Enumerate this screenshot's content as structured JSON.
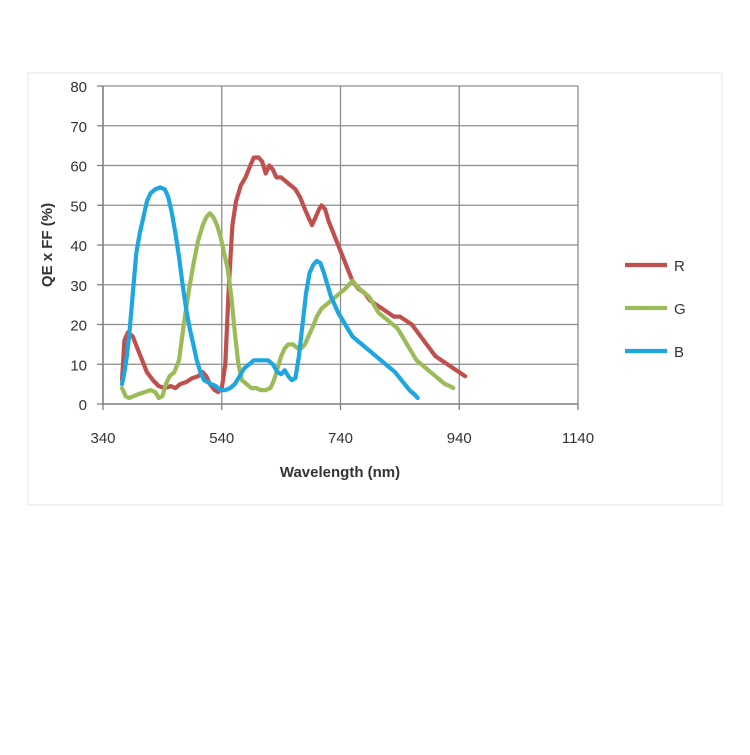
{
  "chart_data": {
    "type": "line",
    "title": "",
    "xlabel": "Wavelength (nm)",
    "ylabel": "QE x FF (%)",
    "xlim": [
      340,
      1140
    ],
    "ylim": [
      0,
      80
    ],
    "xticks": [
      340,
      540,
      740,
      940,
      1140
    ],
    "yticks": [
      0,
      10,
      20,
      30,
      40,
      50,
      60,
      70,
      80
    ],
    "grid": true,
    "legend": "right",
    "series": [
      {
        "name": "R",
        "color": "#c0504d",
        "points": [
          [
            372,
            6
          ],
          [
            376,
            16
          ],
          [
            382,
            18
          ],
          [
            390,
            17
          ],
          [
            398,
            14
          ],
          [
            406,
            11
          ],
          [
            414,
            8
          ],
          [
            424,
            6
          ],
          [
            434,
            4.5
          ],
          [
            444,
            4
          ],
          [
            454,
            4.5
          ],
          [
            462,
            4
          ],
          [
            470,
            5
          ],
          [
            480,
            5.5
          ],
          [
            490,
            6.5
          ],
          [
            500,
            7
          ],
          [
            508,
            8
          ],
          [
            514,
            7
          ],
          [
            520,
            5
          ],
          [
            528,
            3.5
          ],
          [
            534,
            3
          ],
          [
            540,
            4
          ],
          [
            546,
            10
          ],
          [
            552,
            30
          ],
          [
            558,
            45
          ],
          [
            564,
            51
          ],
          [
            572,
            55
          ],
          [
            580,
            57
          ],
          [
            588,
            60
          ],
          [
            594,
            62
          ],
          [
            602,
            62
          ],
          [
            608,
            61
          ],
          [
            614,
            58
          ],
          [
            620,
            60
          ],
          [
            626,
            59
          ],
          [
            632,
            57
          ],
          [
            640,
            57
          ],
          [
            648,
            56
          ],
          [
            656,
            55
          ],
          [
            664,
            54
          ],
          [
            672,
            52
          ],
          [
            680,
            49
          ],
          [
            686,
            47
          ],
          [
            692,
            45
          ],
          [
            698,
            47
          ],
          [
            704,
            49
          ],
          [
            708,
            50
          ],
          [
            714,
            49
          ],
          [
            720,
            46
          ],
          [
            728,
            43
          ],
          [
            736,
            40
          ],
          [
            744,
            37
          ],
          [
            752,
            34
          ],
          [
            760,
            31
          ],
          [
            770,
            29
          ],
          [
            780,
            28
          ],
          [
            790,
            26
          ],
          [
            800,
            25
          ],
          [
            810,
            24
          ],
          [
            820,
            23
          ],
          [
            830,
            22
          ],
          [
            840,
            22
          ],
          [
            850,
            21
          ],
          [
            860,
            20
          ],
          [
            870,
            18
          ],
          [
            880,
            16
          ],
          [
            890,
            14
          ],
          [
            900,
            12
          ],
          [
            910,
            11
          ],
          [
            920,
            10
          ],
          [
            930,
            9
          ],
          [
            940,
            8
          ],
          [
            950,
            7
          ]
        ]
      },
      {
        "name": "G",
        "color": "#9bbb59",
        "points": [
          [
            372,
            4
          ],
          [
            378,
            2
          ],
          [
            384,
            1.5
          ],
          [
            392,
            2
          ],
          [
            400,
            2.5
          ],
          [
            410,
            3
          ],
          [
            420,
            3.5
          ],
          [
            428,
            3
          ],
          [
            434,
            1.5
          ],
          [
            440,
            2
          ],
          [
            446,
            5
          ],
          [
            452,
            7
          ],
          [
            460,
            8
          ],
          [
            468,
            11
          ],
          [
            476,
            20
          ],
          [
            484,
            28
          ],
          [
            492,
            35
          ],
          [
            500,
            41
          ],
          [
            508,
            45
          ],
          [
            514,
            47
          ],
          [
            520,
            48
          ],
          [
            526,
            47
          ],
          [
            532,
            45
          ],
          [
            538,
            42
          ],
          [
            544,
            38
          ],
          [
            550,
            34
          ],
          [
            556,
            27
          ],
          [
            562,
            18
          ],
          [
            568,
            10
          ],
          [
            574,
            6
          ],
          [
            582,
            5
          ],
          [
            590,
            4
          ],
          [
            598,
            4
          ],
          [
            606,
            3.5
          ],
          [
            614,
            3.5
          ],
          [
            622,
            4
          ],
          [
            628,
            6
          ],
          [
            634,
            9
          ],
          [
            640,
            12
          ],
          [
            646,
            14
          ],
          [
            652,
            15
          ],
          [
            660,
            15
          ],
          [
            668,
            14
          ],
          [
            674,
            14
          ],
          [
            680,
            15
          ],
          [
            686,
            17
          ],
          [
            692,
            19
          ],
          [
            700,
            22
          ],
          [
            708,
            24
          ],
          [
            716,
            25
          ],
          [
            724,
            26
          ],
          [
            732,
            27
          ],
          [
            740,
            28
          ],
          [
            748,
            29
          ],
          [
            754,
            30
          ],
          [
            760,
            31
          ],
          [
            766,
            30
          ],
          [
            772,
            29
          ],
          [
            780,
            28
          ],
          [
            788,
            27
          ],
          [
            796,
            25
          ],
          [
            804,
            23
          ],
          [
            812,
            22
          ],
          [
            820,
            21
          ],
          [
            828,
            20
          ],
          [
            836,
            19
          ],
          [
            844,
            17
          ],
          [
            852,
            15
          ],
          [
            860,
            13
          ],
          [
            868,
            11
          ],
          [
            876,
            10
          ],
          [
            884,
            9
          ],
          [
            892,
            8
          ],
          [
            900,
            7
          ],
          [
            908,
            6
          ],
          [
            916,
            5
          ],
          [
            924,
            4.5
          ],
          [
            930,
            4
          ]
        ]
      },
      {
        "name": "B",
        "color": "#1ea6e0",
        "points": [
          [
            372,
            5
          ],
          [
            376,
            8
          ],
          [
            380,
            12
          ],
          [
            384,
            17
          ],
          [
            388,
            24
          ],
          [
            392,
            31
          ],
          [
            396,
            38
          ],
          [
            402,
            43
          ],
          [
            408,
            47
          ],
          [
            414,
            51
          ],
          [
            420,
            53
          ],
          [
            428,
            54
          ],
          [
            436,
            54.5
          ],
          [
            444,
            54
          ],
          [
            450,
            52
          ],
          [
            456,
            48
          ],
          [
            462,
            43
          ],
          [
            468,
            37
          ],
          [
            474,
            30
          ],
          [
            480,
            24
          ],
          [
            486,
            19
          ],
          [
            492,
            15
          ],
          [
            498,
            11
          ],
          [
            504,
            8
          ],
          [
            510,
            6
          ],
          [
            516,
            5.5
          ],
          [
            522,
            5
          ],
          [
            530,
            4.5
          ],
          [
            538,
            3.5
          ],
          [
            546,
            3.5
          ],
          [
            554,
            4
          ],
          [
            562,
            5
          ],
          [
            570,
            7
          ],
          [
            578,
            9
          ],
          [
            586,
            10
          ],
          [
            594,
            11
          ],
          [
            602,
            11
          ],
          [
            610,
            11
          ],
          [
            618,
            11
          ],
          [
            626,
            10
          ],
          [
            634,
            8
          ],
          [
            640,
            7.5
          ],
          [
            646,
            8.5
          ],
          [
            652,
            7
          ],
          [
            658,
            6
          ],
          [
            664,
            6.5
          ],
          [
            670,
            12
          ],
          [
            676,
            20
          ],
          [
            682,
            28
          ],
          [
            688,
            33
          ],
          [
            694,
            35
          ],
          [
            700,
            36
          ],
          [
            706,
            35.5
          ],
          [
            712,
            33
          ],
          [
            718,
            30
          ],
          [
            724,
            27
          ],
          [
            730,
            25
          ],
          [
            736,
            23
          ],
          [
            744,
            21
          ],
          [
            752,
            19
          ],
          [
            760,
            17
          ],
          [
            768,
            16
          ],
          [
            776,
            15
          ],
          [
            784,
            14
          ],
          [
            792,
            13
          ],
          [
            800,
            12
          ],
          [
            808,
            11
          ],
          [
            816,
            10
          ],
          [
            824,
            9
          ],
          [
            832,
            8
          ],
          [
            840,
            6.5
          ],
          [
            848,
            5
          ],
          [
            856,
            3.5
          ],
          [
            864,
            2.5
          ],
          [
            870,
            1.5
          ]
        ]
      }
    ]
  }
}
